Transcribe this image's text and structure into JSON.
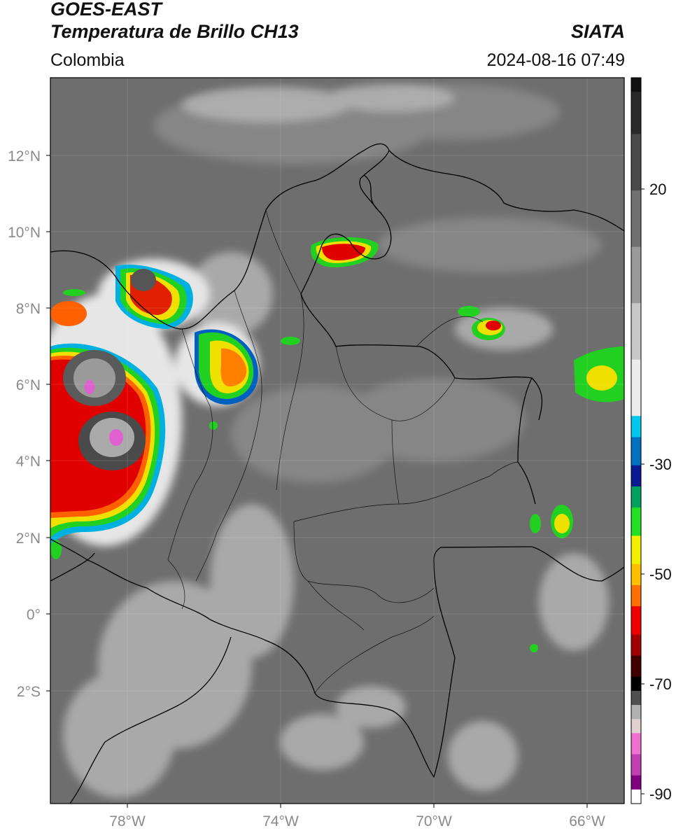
{
  "header": {
    "satellite": "GOES-EAST",
    "product": "Temperatura de Brillo CH13",
    "brand": "SIATA",
    "region": "Colombia",
    "timestamp": "2024-08-16 07:49"
  },
  "map": {
    "lat_labels": [
      "12°N",
      "10°N",
      "8°N",
      "6°N",
      "4°N",
      "2°N",
      "0°",
      "2°S"
    ],
    "lon_labels": [
      "78°W",
      "74°W",
      "70°W",
      "66°W"
    ]
  },
  "colorbar": {
    "ticks": [
      "20",
      "-30",
      "-50",
      "-70",
      "-90"
    ],
    "stops": [
      "#111111",
      "#2a2a2a",
      "#4a4a4a",
      "#707070",
      "#9a9a9a",
      "#c8c8c8",
      "#ebebeb",
      "#00c8ee",
      "#0070c0",
      "#0a1a90",
      "#00a060",
      "#22e022",
      "#f0f000",
      "#ffc000",
      "#ff7000",
      "#ee0000",
      "#a00000",
      "#400000",
      "#000000",
      "#505050",
      "#b0b0b0",
      "#e0d0d0",
      "#f070d0",
      "#c040b0",
      "#800080",
      "#ffffff"
    ]
  }
}
